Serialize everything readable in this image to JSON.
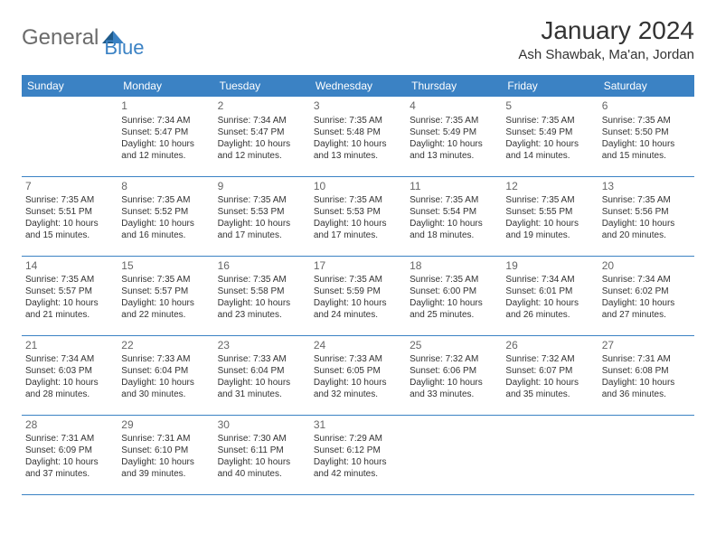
{
  "logo": {
    "text1": "General",
    "text2": "Blue"
  },
  "title": "January 2024",
  "location": "Ash Shawbak, Ma'an, Jordan",
  "weekdays": [
    "Sunday",
    "Monday",
    "Tuesday",
    "Wednesday",
    "Thursday",
    "Friday",
    "Saturday"
  ],
  "header_bg": "#3b82c4",
  "header_fg": "#ffffff",
  "border_color": "#3b82c4",
  "weeks": [
    [
      null,
      {
        "d": "1",
        "sr": "Sunrise: 7:34 AM",
        "ss": "Sunset: 5:47 PM",
        "dl": "Daylight: 10 hours and 12 minutes."
      },
      {
        "d": "2",
        "sr": "Sunrise: 7:34 AM",
        "ss": "Sunset: 5:47 PM",
        "dl": "Daylight: 10 hours and 12 minutes."
      },
      {
        "d": "3",
        "sr": "Sunrise: 7:35 AM",
        "ss": "Sunset: 5:48 PM",
        "dl": "Daylight: 10 hours and 13 minutes."
      },
      {
        "d": "4",
        "sr": "Sunrise: 7:35 AM",
        "ss": "Sunset: 5:49 PM",
        "dl": "Daylight: 10 hours and 13 minutes."
      },
      {
        "d": "5",
        "sr": "Sunrise: 7:35 AM",
        "ss": "Sunset: 5:49 PM",
        "dl": "Daylight: 10 hours and 14 minutes."
      },
      {
        "d": "6",
        "sr": "Sunrise: 7:35 AM",
        "ss": "Sunset: 5:50 PM",
        "dl": "Daylight: 10 hours and 15 minutes."
      }
    ],
    [
      {
        "d": "7",
        "sr": "Sunrise: 7:35 AM",
        "ss": "Sunset: 5:51 PM",
        "dl": "Daylight: 10 hours and 15 minutes."
      },
      {
        "d": "8",
        "sr": "Sunrise: 7:35 AM",
        "ss": "Sunset: 5:52 PM",
        "dl": "Daylight: 10 hours and 16 minutes."
      },
      {
        "d": "9",
        "sr": "Sunrise: 7:35 AM",
        "ss": "Sunset: 5:53 PM",
        "dl": "Daylight: 10 hours and 17 minutes."
      },
      {
        "d": "10",
        "sr": "Sunrise: 7:35 AM",
        "ss": "Sunset: 5:53 PM",
        "dl": "Daylight: 10 hours and 17 minutes."
      },
      {
        "d": "11",
        "sr": "Sunrise: 7:35 AM",
        "ss": "Sunset: 5:54 PM",
        "dl": "Daylight: 10 hours and 18 minutes."
      },
      {
        "d": "12",
        "sr": "Sunrise: 7:35 AM",
        "ss": "Sunset: 5:55 PM",
        "dl": "Daylight: 10 hours and 19 minutes."
      },
      {
        "d": "13",
        "sr": "Sunrise: 7:35 AM",
        "ss": "Sunset: 5:56 PM",
        "dl": "Daylight: 10 hours and 20 minutes."
      }
    ],
    [
      {
        "d": "14",
        "sr": "Sunrise: 7:35 AM",
        "ss": "Sunset: 5:57 PM",
        "dl": "Daylight: 10 hours and 21 minutes."
      },
      {
        "d": "15",
        "sr": "Sunrise: 7:35 AM",
        "ss": "Sunset: 5:57 PM",
        "dl": "Daylight: 10 hours and 22 minutes."
      },
      {
        "d": "16",
        "sr": "Sunrise: 7:35 AM",
        "ss": "Sunset: 5:58 PM",
        "dl": "Daylight: 10 hours and 23 minutes."
      },
      {
        "d": "17",
        "sr": "Sunrise: 7:35 AM",
        "ss": "Sunset: 5:59 PM",
        "dl": "Daylight: 10 hours and 24 minutes."
      },
      {
        "d": "18",
        "sr": "Sunrise: 7:35 AM",
        "ss": "Sunset: 6:00 PM",
        "dl": "Daylight: 10 hours and 25 minutes."
      },
      {
        "d": "19",
        "sr": "Sunrise: 7:34 AM",
        "ss": "Sunset: 6:01 PM",
        "dl": "Daylight: 10 hours and 26 minutes."
      },
      {
        "d": "20",
        "sr": "Sunrise: 7:34 AM",
        "ss": "Sunset: 6:02 PM",
        "dl": "Daylight: 10 hours and 27 minutes."
      }
    ],
    [
      {
        "d": "21",
        "sr": "Sunrise: 7:34 AM",
        "ss": "Sunset: 6:03 PM",
        "dl": "Daylight: 10 hours and 28 minutes."
      },
      {
        "d": "22",
        "sr": "Sunrise: 7:33 AM",
        "ss": "Sunset: 6:04 PM",
        "dl": "Daylight: 10 hours and 30 minutes."
      },
      {
        "d": "23",
        "sr": "Sunrise: 7:33 AM",
        "ss": "Sunset: 6:04 PM",
        "dl": "Daylight: 10 hours and 31 minutes."
      },
      {
        "d": "24",
        "sr": "Sunrise: 7:33 AM",
        "ss": "Sunset: 6:05 PM",
        "dl": "Daylight: 10 hours and 32 minutes."
      },
      {
        "d": "25",
        "sr": "Sunrise: 7:32 AM",
        "ss": "Sunset: 6:06 PM",
        "dl": "Daylight: 10 hours and 33 minutes."
      },
      {
        "d": "26",
        "sr": "Sunrise: 7:32 AM",
        "ss": "Sunset: 6:07 PM",
        "dl": "Daylight: 10 hours and 35 minutes."
      },
      {
        "d": "27",
        "sr": "Sunrise: 7:31 AM",
        "ss": "Sunset: 6:08 PM",
        "dl": "Daylight: 10 hours and 36 minutes."
      }
    ],
    [
      {
        "d": "28",
        "sr": "Sunrise: 7:31 AM",
        "ss": "Sunset: 6:09 PM",
        "dl": "Daylight: 10 hours and 37 minutes."
      },
      {
        "d": "29",
        "sr": "Sunrise: 7:31 AM",
        "ss": "Sunset: 6:10 PM",
        "dl": "Daylight: 10 hours and 39 minutes."
      },
      {
        "d": "30",
        "sr": "Sunrise: 7:30 AM",
        "ss": "Sunset: 6:11 PM",
        "dl": "Daylight: 10 hours and 40 minutes."
      },
      {
        "d": "31",
        "sr": "Sunrise: 7:29 AM",
        "ss": "Sunset: 6:12 PM",
        "dl": "Daylight: 10 hours and 42 minutes."
      },
      null,
      null,
      null
    ]
  ]
}
